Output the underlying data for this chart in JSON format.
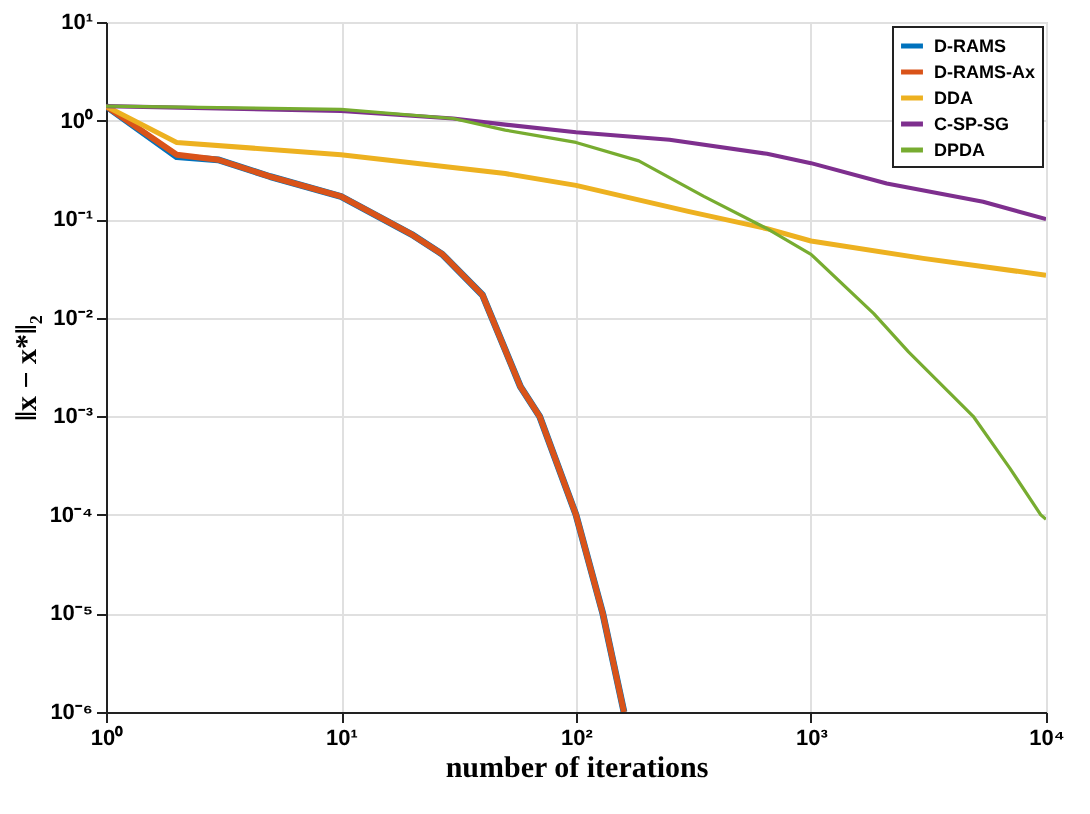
{
  "chart_data": {
    "type": "line",
    "xlabel": "number of iterations",
    "ylabel": "‖x − x*‖₂",
    "log": "xy",
    "grid": true,
    "legend": "top right",
    "xlim": [
      1,
      10000
    ],
    "ylim": [
      1e-06,
      10
    ],
    "xticks": [
      {
        "value": 1,
        "label": "10⁰"
      },
      {
        "value": 10,
        "label": "10¹"
      },
      {
        "value": 100,
        "label": "10²"
      },
      {
        "value": 1000,
        "label": "10³"
      },
      {
        "value": 10000,
        "label": "10⁴"
      }
    ],
    "yticks": [
      {
        "value": 1e-06,
        "label": "10⁻⁶"
      },
      {
        "value": 1e-05,
        "label": "10⁻⁵"
      },
      {
        "value": 0.0001,
        "label": "10⁻⁴"
      },
      {
        "value": 0.001,
        "label": "10⁻³"
      },
      {
        "value": 0.01,
        "label": "10⁻²"
      },
      {
        "value": 0.1,
        "label": "10⁻¹"
      },
      {
        "value": 1,
        "label": "10⁰"
      },
      {
        "value": 10,
        "label": "10¹"
      }
    ],
    "series": [
      {
        "name": "D-RAMS",
        "color": "#0072bd",
        "x": [
          1,
          2,
          3,
          5,
          10,
          20,
          27,
          40,
          58,
          70,
          100,
          130,
          160
        ],
        "values": [
          1.4,
          0.43,
          0.4,
          0.27,
          0.17,
          0.07,
          0.044,
          0.017,
          0.002,
          0.001,
          0.0001,
          1e-05,
          1e-06
        ]
      },
      {
        "name": "D-RAMS-Ax",
        "color": "#d95319",
        "x": [
          1,
          2,
          3,
          5,
          10,
          20,
          27,
          40,
          58,
          70,
          100,
          130,
          160
        ],
        "values": [
          1.4,
          0.45,
          0.4,
          0.27,
          0.17,
          0.07,
          0.044,
          0.017,
          0.002,
          0.001,
          0.0001,
          1e-05,
          1e-06
        ]
      },
      {
        "name": "DDA",
        "color": "#edb120",
        "x": [
          1,
          2,
          10,
          50,
          100,
          300,
          650,
          1000,
          3000,
          10000
        ],
        "values": [
          1.4,
          0.6,
          0.45,
          0.29,
          0.22,
          0.12,
          0.08,
          0.06,
          0.04,
          0.027
        ]
      },
      {
        "name": "C-SP-SG",
        "color": "#7e2f8e",
        "x": [
          1,
          10,
          30,
          50,
          100,
          250,
          650,
          1000,
          2100,
          5400,
          10000
        ],
        "values": [
          1.4,
          1.25,
          1.05,
          0.91,
          0.76,
          0.64,
          0.46,
          0.37,
          0.23,
          0.15,
          0.1
        ]
      },
      {
        "name": "DPDA",
        "color": "#77ac30",
        "x": [
          1,
          10,
          30,
          50,
          100,
          185,
          350,
          650,
          1000,
          1850,
          2600,
          4900,
          7000,
          9500,
          10000
        ],
        "values": [
          1.4,
          1.3,
          1.05,
          0.8,
          0.6,
          0.39,
          0.17,
          0.08,
          0.044,
          0.011,
          0.0045,
          0.001,
          0.0003,
          0.0001,
          9e-05
        ]
      }
    ]
  }
}
